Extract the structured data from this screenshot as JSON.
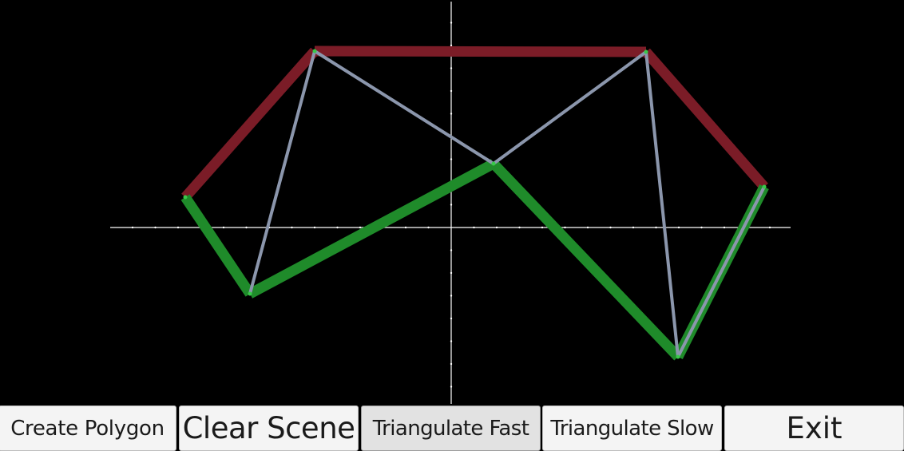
{
  "toolbar": {
    "create_polygon_label": "Create Polygon",
    "clear_scene_label": "Clear Scene",
    "triangulate_fast_label": "Triangulate Fast",
    "triangulate_slow_label": "Triangulate Slow",
    "exit_label": "Exit",
    "pressed": "triangulate_fast"
  },
  "colors": {
    "background": "#000000",
    "axes": "#ffffff",
    "upper_chain": "#7b1c27",
    "lower_chain": "#1f8b2a",
    "diagonals": "#8b96ac",
    "vertex_marker": "#39c94a",
    "button_face": "#f4f4f4",
    "button_pressed": "#e2e2e2"
  }
}
